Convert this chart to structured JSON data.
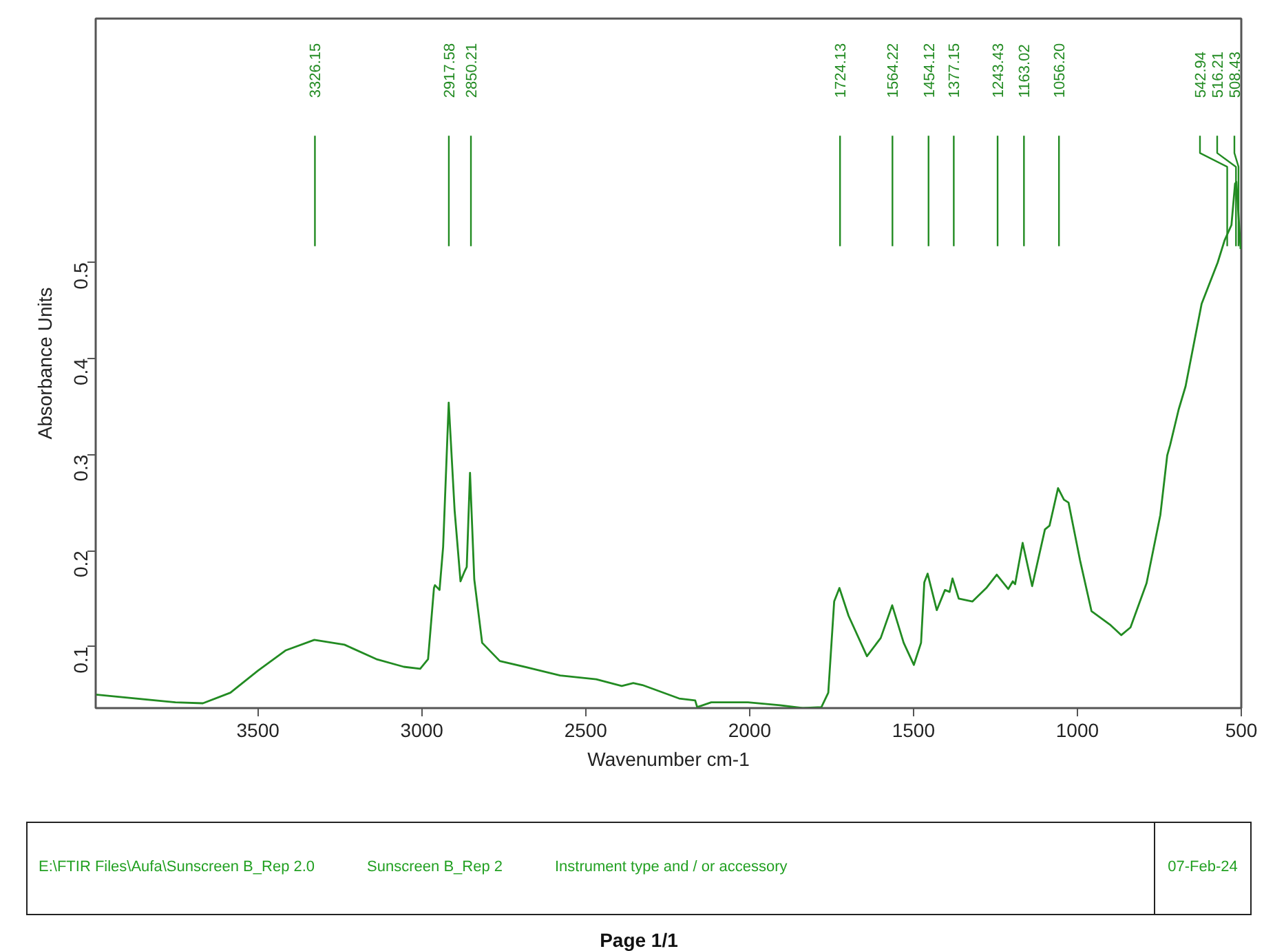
{
  "chart_data": {
    "type": "line",
    "xlabel": "Wavenumber cm-1",
    "ylabel": "Absorbance Units",
    "xlim": [
      3995,
      500
    ],
    "ylim": [
      0.036,
      0.754
    ],
    "xticks": [
      3500,
      3000,
      2500,
      2000,
      1500,
      1000,
      500
    ],
    "yticks": [
      0.1,
      0.2,
      0.3,
      0.4,
      0.5
    ],
    "grid": false,
    "marker": "none",
    "line_style": "solid",
    "series": [
      {
        "color": "#228b22",
        "x": [
          3995,
          3752,
          3668,
          3584,
          3500,
          3416,
          3328,
          3236,
          3139,
          3055,
          3005,
          2981,
          2963,
          2960,
          2946,
          2935,
          2918,
          2900,
          2882,
          2870,
          2863,
          2853,
          2840,
          2816,
          2762,
          2662,
          2578,
          2468,
          2390,
          2355,
          2327,
          2215,
          2166,
          2160,
          2117,
          2005,
          1907,
          1838,
          1781,
          1760,
          1742,
          1726,
          1698,
          1642,
          1600,
          1565,
          1530,
          1499,
          1477,
          1467,
          1457,
          1429,
          1404,
          1390,
          1381,
          1362,
          1320,
          1278,
          1246,
          1211,
          1197,
          1190,
          1167,
          1138,
          1099,
          1085,
          1059,
          1041,
          1027,
          992,
          957,
          901,
          866,
          838,
          789,
          747,
          726,
          717,
          691,
          670,
          621,
          572,
          551,
          530,
          519,
          515,
          502
        ],
        "values": [
          0.05,
          0.042,
          0.041,
          0.052,
          0.075,
          0.096,
          0.107,
          0.102,
          0.087,
          0.079,
          0.077,
          0.087,
          0.161,
          0.164,
          0.159,
          0.204,
          0.354,
          0.242,
          0.168,
          0.178,
          0.183,
          0.281,
          0.17,
          0.104,
          0.085,
          0.077,
          0.07,
          0.066,
          0.059,
          0.062,
          0.06,
          0.046,
          0.044,
          0.037,
          0.042,
          0.042,
          0.039,
          0.036,
          0.037,
          0.052,
          0.147,
          0.161,
          0.132,
          0.09,
          0.109,
          0.143,
          0.104,
          0.081,
          0.104,
          0.167,
          0.176,
          0.138,
          0.159,
          0.157,
          0.171,
          0.15,
          0.147,
          0.161,
          0.175,
          0.16,
          0.168,
          0.165,
          0.208,
          0.163,
          0.222,
          0.226,
          0.265,
          0.253,
          0.25,
          0.19,
          0.137,
          0.123,
          0.112,
          0.12,
          0.166,
          0.237,
          0.299,
          0.31,
          0.347,
          0.371,
          0.457,
          0.5,
          0.523,
          0.539,
          0.582,
          0.584,
          0.514
        ]
      }
    ],
    "ref_lines": [
      {
        "axis": "x",
        "value": 3326.15,
        "label": "3326.15"
      },
      {
        "axis": "x",
        "value": 2917.58,
        "label": "2917.58"
      },
      {
        "axis": "x",
        "value": 2850.21,
        "label": "2850.21"
      },
      {
        "axis": "x",
        "value": 1724.13,
        "label": "1724.13"
      },
      {
        "axis": "x",
        "value": 1564.22,
        "label": "1564.22"
      },
      {
        "axis": "x",
        "value": 1454.12,
        "label": "1454.12"
      },
      {
        "axis": "x",
        "value": 1377.15,
        "label": "1377.15"
      },
      {
        "axis": "x",
        "value": 1243.43,
        "label": "1243.43"
      },
      {
        "axis": "x",
        "value": 1163.02,
        "label": "1163.02"
      },
      {
        "axis": "x",
        "value": 1056.2,
        "label": "1056.20"
      },
      {
        "axis": "x",
        "value": 542.94,
        "label": "542.94"
      },
      {
        "axis": "x",
        "value": 516.21,
        "label": "516.21"
      },
      {
        "axis": "x",
        "value": 508.43,
        "label": "508.43"
      }
    ],
    "annotations": [
      "E:\\FTIR Files\\Aufa\\Sunscreen B_Rep 2.0",
      "Sunscreen B_Rep 2",
      "Instrument type and / or accessory",
      "07-Feb-24",
      "Page 1/1"
    ]
  }
}
